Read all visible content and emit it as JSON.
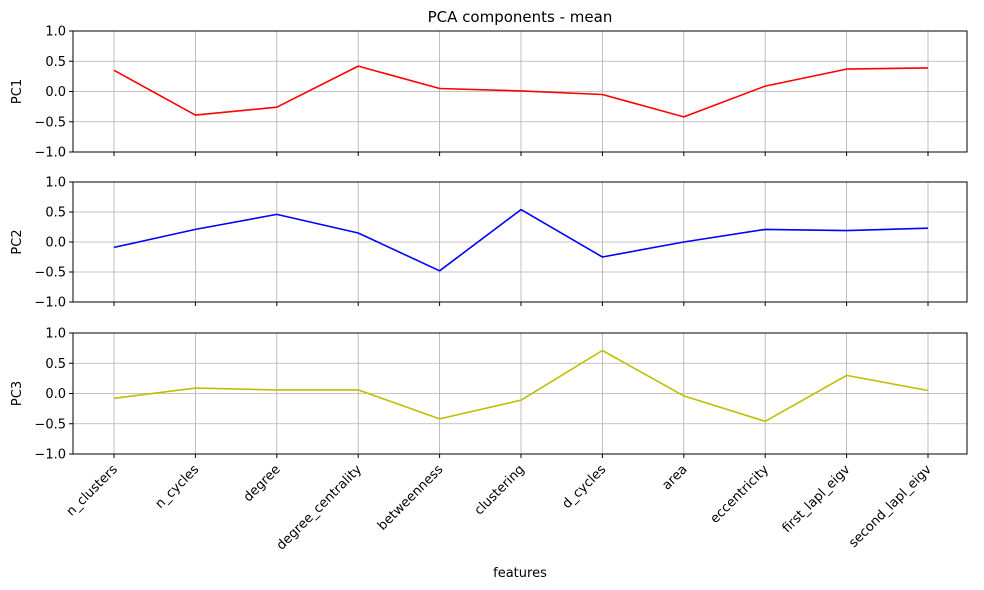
{
  "chart_data": {
    "type": "line",
    "title": "PCA components - mean",
    "xlabel": "features",
    "categories": [
      "n_clusters",
      "n_cycles",
      "degree",
      "degree_centrality",
      "betweenness",
      "clustering",
      "d_cycles",
      "area",
      "eccentricity",
      "first_lapl_eigv",
      "second_lapl_eigv"
    ],
    "ylim": [
      -1.0,
      1.0
    ],
    "yticks": [
      "1.0",
      "0.5",
      "0.0",
      "−0.5",
      "−1.0"
    ],
    "grid": true,
    "subplots": [
      {
        "ylabel": "PC1",
        "color": "#ff0000",
        "values": [
          0.35,
          -0.39,
          -0.26,
          0.42,
          0.05,
          0.01,
          -0.05,
          -0.42,
          0.09,
          0.37,
          0.39
        ]
      },
      {
        "ylabel": "PC2",
        "color": "#0000ff",
        "values": [
          -0.09,
          0.21,
          0.46,
          0.15,
          -0.48,
          0.54,
          -0.25,
          0.0,
          0.21,
          0.19,
          0.23
        ]
      },
      {
        "ylabel": "PC3",
        "color": "#bfbf00",
        "values": [
          -0.08,
          0.09,
          0.06,
          0.06,
          -0.42,
          -0.11,
          0.71,
          -0.04,
          -0.46,
          0.3,
          0.05
        ]
      }
    ]
  }
}
